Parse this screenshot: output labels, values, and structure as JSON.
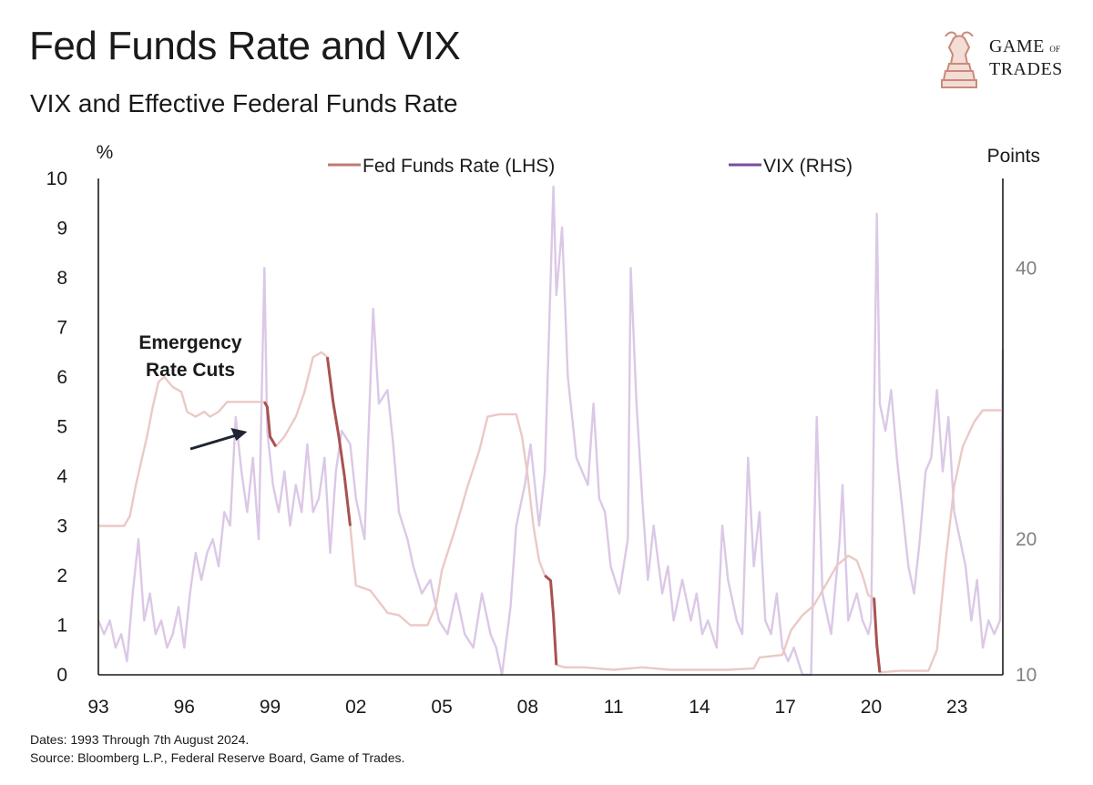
{
  "header": {
    "title": "Fed Funds Rate and VIX",
    "subtitle": "VIX and Effective Federal Funds Rate"
  },
  "logo": {
    "line1": "GAME",
    "line1_small": "OF",
    "line2": "TRADES",
    "icon": "bull-knight-chess-icon",
    "color": "#c98a7a"
  },
  "footer": {
    "dates": "Dates: 1993 Through 7th August 2024.",
    "source": "Source: Bloomberg L.P., Federal Reserve Board, Game of Trades."
  },
  "colors": {
    "fed_light": "#ebc9c5",
    "fed_highlight": "#a8524f",
    "vix": "#dbc8e6",
    "vix_legend": "#7a4b9c",
    "fed_legend": "#c07a72",
    "axis": "#1a1a1a"
  },
  "chart_data": {
    "type": "line",
    "title": "Fed Funds Rate and VIX",
    "subtitle": "VIX and Effective Federal Funds Rate",
    "left_unit": "%",
    "right_unit": "Points",
    "legend": [
      {
        "label": "Fed Funds Rate (LHS)",
        "color": "#c07a72"
      },
      {
        "label": "VIX (RHS)",
        "color": "#7a4b9c"
      }
    ],
    "legend_position": "top-center",
    "grid": false,
    "x_tick_labels": [
      "93",
      "96",
      "99",
      "02",
      "05",
      "08",
      "11",
      "14",
      "17",
      "20",
      "23"
    ],
    "x_tick_years": [
      1993,
      1996,
      1999,
      2002,
      2005,
      2008,
      2011,
      2014,
      2017,
      2020,
      2023
    ],
    "xlim": [
      1993,
      2024.6
    ],
    "left_ylim": [
      0,
      10
    ],
    "left_ticks": [
      "0",
      "1",
      "2",
      "3",
      "4",
      "5",
      "6",
      "7",
      "8",
      "9",
      "10"
    ],
    "right_ylim": [
      10,
      46.6
    ],
    "right_ticks": [
      {
        "value": 10,
        "label": "10"
      },
      {
        "value": 20,
        "label": "20"
      },
      {
        "value": 40,
        "label": "40"
      }
    ],
    "annotation": {
      "text_line1": "Emergency",
      "text_line2": "Rate Cuts",
      "arrow_to": [
        1998.2,
        4.9
      ]
    },
    "series": [
      {
        "name": "Fed Funds Rate (LHS)",
        "axis": "left",
        "points": [
          [
            1993.0,
            3.0
          ],
          [
            1993.5,
            3.0
          ],
          [
            1993.9,
            3.0
          ],
          [
            1994.1,
            3.2
          ],
          [
            1994.3,
            3.8
          ],
          [
            1994.5,
            4.3
          ],
          [
            1994.7,
            4.8
          ],
          [
            1994.9,
            5.4
          ],
          [
            1995.1,
            5.9
          ],
          [
            1995.3,
            6.0
          ],
          [
            1995.6,
            5.8
          ],
          [
            1995.9,
            5.7
          ],
          [
            1996.1,
            5.3
          ],
          [
            1996.4,
            5.2
          ],
          [
            1996.7,
            5.3
          ],
          [
            1996.9,
            5.2
          ],
          [
            1997.2,
            5.3
          ],
          [
            1997.5,
            5.5
          ],
          [
            1997.8,
            5.5
          ],
          [
            1998.1,
            5.5
          ],
          [
            1998.5,
            5.5
          ],
          [
            1998.8,
            5.5
          ],
          [
            1998.9,
            5.4
          ],
          [
            1999.0,
            4.8
          ],
          [
            1999.2,
            4.6
          ],
          [
            1999.5,
            4.8
          ],
          [
            1999.9,
            5.2
          ],
          [
            2000.2,
            5.7
          ],
          [
            2000.5,
            6.4
          ],
          [
            2000.8,
            6.5
          ],
          [
            2001.0,
            6.4
          ],
          [
            2001.2,
            5.5
          ],
          [
            2001.4,
            4.8
          ],
          [
            2001.6,
            4.0
          ],
          [
            2001.8,
            3.0
          ],
          [
            2002.0,
            1.8
          ],
          [
            2002.5,
            1.7
          ],
          [
            2002.9,
            1.4
          ],
          [
            2003.1,
            1.25
          ],
          [
            2003.5,
            1.2
          ],
          [
            2003.9,
            1.0
          ],
          [
            2004.5,
            1.0
          ],
          [
            2004.8,
            1.4
          ],
          [
            2005.0,
            2.1
          ],
          [
            2005.5,
            3.0
          ],
          [
            2005.9,
            3.8
          ],
          [
            2006.3,
            4.5
          ],
          [
            2006.6,
            5.2
          ],
          [
            2007.0,
            5.25
          ],
          [
            2007.6,
            5.25
          ],
          [
            2007.8,
            4.8
          ],
          [
            2008.0,
            4.0
          ],
          [
            2008.2,
            3.0
          ],
          [
            2008.4,
            2.3
          ],
          [
            2008.6,
            2.0
          ],
          [
            2008.8,
            1.9
          ],
          [
            2008.9,
            1.2
          ],
          [
            2009.0,
            0.2
          ],
          [
            2009.3,
            0.15
          ],
          [
            2010.0,
            0.15
          ],
          [
            2011.0,
            0.1
          ],
          [
            2012.0,
            0.15
          ],
          [
            2013.0,
            0.1
          ],
          [
            2014.0,
            0.1
          ],
          [
            2015.0,
            0.1
          ],
          [
            2015.9,
            0.13
          ],
          [
            2016.1,
            0.35
          ],
          [
            2016.9,
            0.4
          ],
          [
            2017.2,
            0.9
          ],
          [
            2017.6,
            1.2
          ],
          [
            2018.0,
            1.4
          ],
          [
            2018.4,
            1.8
          ],
          [
            2018.8,
            2.2
          ],
          [
            2019.2,
            2.4
          ],
          [
            2019.5,
            2.3
          ],
          [
            2019.7,
            2.0
          ],
          [
            2019.9,
            1.6
          ],
          [
            2020.1,
            1.55
          ],
          [
            2020.2,
            0.6
          ],
          [
            2020.3,
            0.05
          ],
          [
            2021.0,
            0.08
          ],
          [
            2022.0,
            0.08
          ],
          [
            2022.3,
            0.5
          ],
          [
            2022.6,
            2.3
          ],
          [
            2022.9,
            3.8
          ],
          [
            2023.2,
            4.6
          ],
          [
            2023.6,
            5.1
          ],
          [
            2023.9,
            5.33
          ],
          [
            2024.6,
            5.33
          ]
        ]
      },
      {
        "name": "VIX (RHS)",
        "axis": "right",
        "points": [
          [
            1993.0,
            14
          ],
          [
            1993.2,
            13
          ],
          [
            1993.4,
            14
          ],
          [
            1993.6,
            12
          ],
          [
            1993.8,
            13
          ],
          [
            1994.0,
            11
          ],
          [
            1994.2,
            16
          ],
          [
            1994.4,
            20
          ],
          [
            1994.6,
            14
          ],
          [
            1994.8,
            16
          ],
          [
            1995.0,
            13
          ],
          [
            1995.2,
            14
          ],
          [
            1995.4,
            12
          ],
          [
            1995.6,
            13
          ],
          [
            1995.8,
            15
          ],
          [
            1996.0,
            12
          ],
          [
            1996.2,
            16
          ],
          [
            1996.4,
            19
          ],
          [
            1996.6,
            17
          ],
          [
            1996.8,
            19
          ],
          [
            1997.0,
            20
          ],
          [
            1997.2,
            18
          ],
          [
            1997.4,
            22
          ],
          [
            1997.6,
            21
          ],
          [
            1997.8,
            29
          ],
          [
            1998.0,
            25
          ],
          [
            1998.2,
            22
          ],
          [
            1998.4,
            26
          ],
          [
            1998.6,
            20
          ],
          [
            1998.8,
            40
          ],
          [
            1998.9,
            28
          ],
          [
            1999.1,
            24
          ],
          [
            1999.3,
            22
          ],
          [
            1999.5,
            25
          ],
          [
            1999.7,
            21
          ],
          [
            1999.9,
            24
          ],
          [
            2000.1,
            22
          ],
          [
            2000.3,
            27
          ],
          [
            2000.5,
            22
          ],
          [
            2000.7,
            23
          ],
          [
            2000.9,
            26
          ],
          [
            2001.1,
            19
          ],
          [
            2001.3,
            25
          ],
          [
            2001.5,
            28
          ],
          [
            2001.8,
            27
          ],
          [
            2002.0,
            23
          ],
          [
            2002.3,
            20
          ],
          [
            2002.6,
            37
          ],
          [
            2002.8,
            30
          ],
          [
            2003.1,
            31
          ],
          [
            2003.3,
            27
          ],
          [
            2003.5,
            22
          ],
          [
            2003.8,
            20
          ],
          [
            2004.0,
            18
          ],
          [
            2004.3,
            16
          ],
          [
            2004.6,
            17
          ],
          [
            2004.9,
            14
          ],
          [
            2005.2,
            13
          ],
          [
            2005.5,
            16
          ],
          [
            2005.8,
            13
          ],
          [
            2006.1,
            12
          ],
          [
            2006.4,
            16
          ],
          [
            2006.7,
            13
          ],
          [
            2006.9,
            12
          ],
          [
            2007.1,
            10
          ],
          [
            2007.4,
            15
          ],
          [
            2007.6,
            21
          ],
          [
            2007.9,
            24
          ],
          [
            2008.1,
            27
          ],
          [
            2008.4,
            21
          ],
          [
            2008.6,
            25
          ],
          [
            2008.9,
            46
          ],
          [
            2009.0,
            38
          ],
          [
            2009.2,
            43
          ],
          [
            2009.4,
            32
          ],
          [
            2009.7,
            26
          ],
          [
            2009.9,
            25
          ],
          [
            2010.1,
            24
          ],
          [
            2010.3,
            30
          ],
          [
            2010.5,
            23
          ],
          [
            2010.7,
            22
          ],
          [
            2010.9,
            18
          ],
          [
            2011.2,
            16
          ],
          [
            2011.5,
            20
          ],
          [
            2011.6,
            40
          ],
          [
            2011.8,
            30
          ],
          [
            2012.0,
            23
          ],
          [
            2012.2,
            17
          ],
          [
            2012.4,
            21
          ],
          [
            2012.7,
            16
          ],
          [
            2012.9,
            18
          ],
          [
            2013.1,
            14
          ],
          [
            2013.4,
            17
          ],
          [
            2013.7,
            14
          ],
          [
            2013.9,
            16
          ],
          [
            2014.1,
            13
          ],
          [
            2014.3,
            14
          ],
          [
            2014.6,
            12
          ],
          [
            2014.8,
            21
          ],
          [
            2015.0,
            17
          ],
          [
            2015.3,
            14
          ],
          [
            2015.5,
            13
          ],
          [
            2015.7,
            26
          ],
          [
            2015.9,
            18
          ],
          [
            2016.1,
            22
          ],
          [
            2016.3,
            14
          ],
          [
            2016.5,
            13
          ],
          [
            2016.7,
            16
          ],
          [
            2016.9,
            12
          ],
          [
            2017.1,
            11
          ],
          [
            2017.3,
            12
          ],
          [
            2017.6,
            10
          ],
          [
            2017.9,
            10
          ],
          [
            2018.1,
            29
          ],
          [
            2018.3,
            16
          ],
          [
            2018.6,
            13
          ],
          [
            2018.9,
            20
          ],
          [
            2019.0,
            24
          ],
          [
            2019.2,
            14
          ],
          [
            2019.5,
            16
          ],
          [
            2019.7,
            14
          ],
          [
            2019.9,
            13
          ],
          [
            2020.0,
            14
          ],
          [
            2020.2,
            44
          ],
          [
            2020.3,
            30
          ],
          [
            2020.5,
            28
          ],
          [
            2020.7,
            31
          ],
          [
            2020.9,
            26
          ],
          [
            2021.1,
            22
          ],
          [
            2021.3,
            18
          ],
          [
            2021.5,
            16
          ],
          [
            2021.7,
            20
          ],
          [
            2021.9,
            25
          ],
          [
            2022.1,
            26
          ],
          [
            2022.3,
            31
          ],
          [
            2022.5,
            25
          ],
          [
            2022.7,
            29
          ],
          [
            2022.9,
            22
          ],
          [
            2023.1,
            20
          ],
          [
            2023.3,
            18
          ],
          [
            2023.5,
            14
          ],
          [
            2023.7,
            17
          ],
          [
            2023.9,
            12
          ],
          [
            2024.1,
            14
          ],
          [
            2024.3,
            13
          ],
          [
            2024.5,
            14
          ],
          [
            2024.6,
            34
          ]
        ]
      }
    ]
  }
}
